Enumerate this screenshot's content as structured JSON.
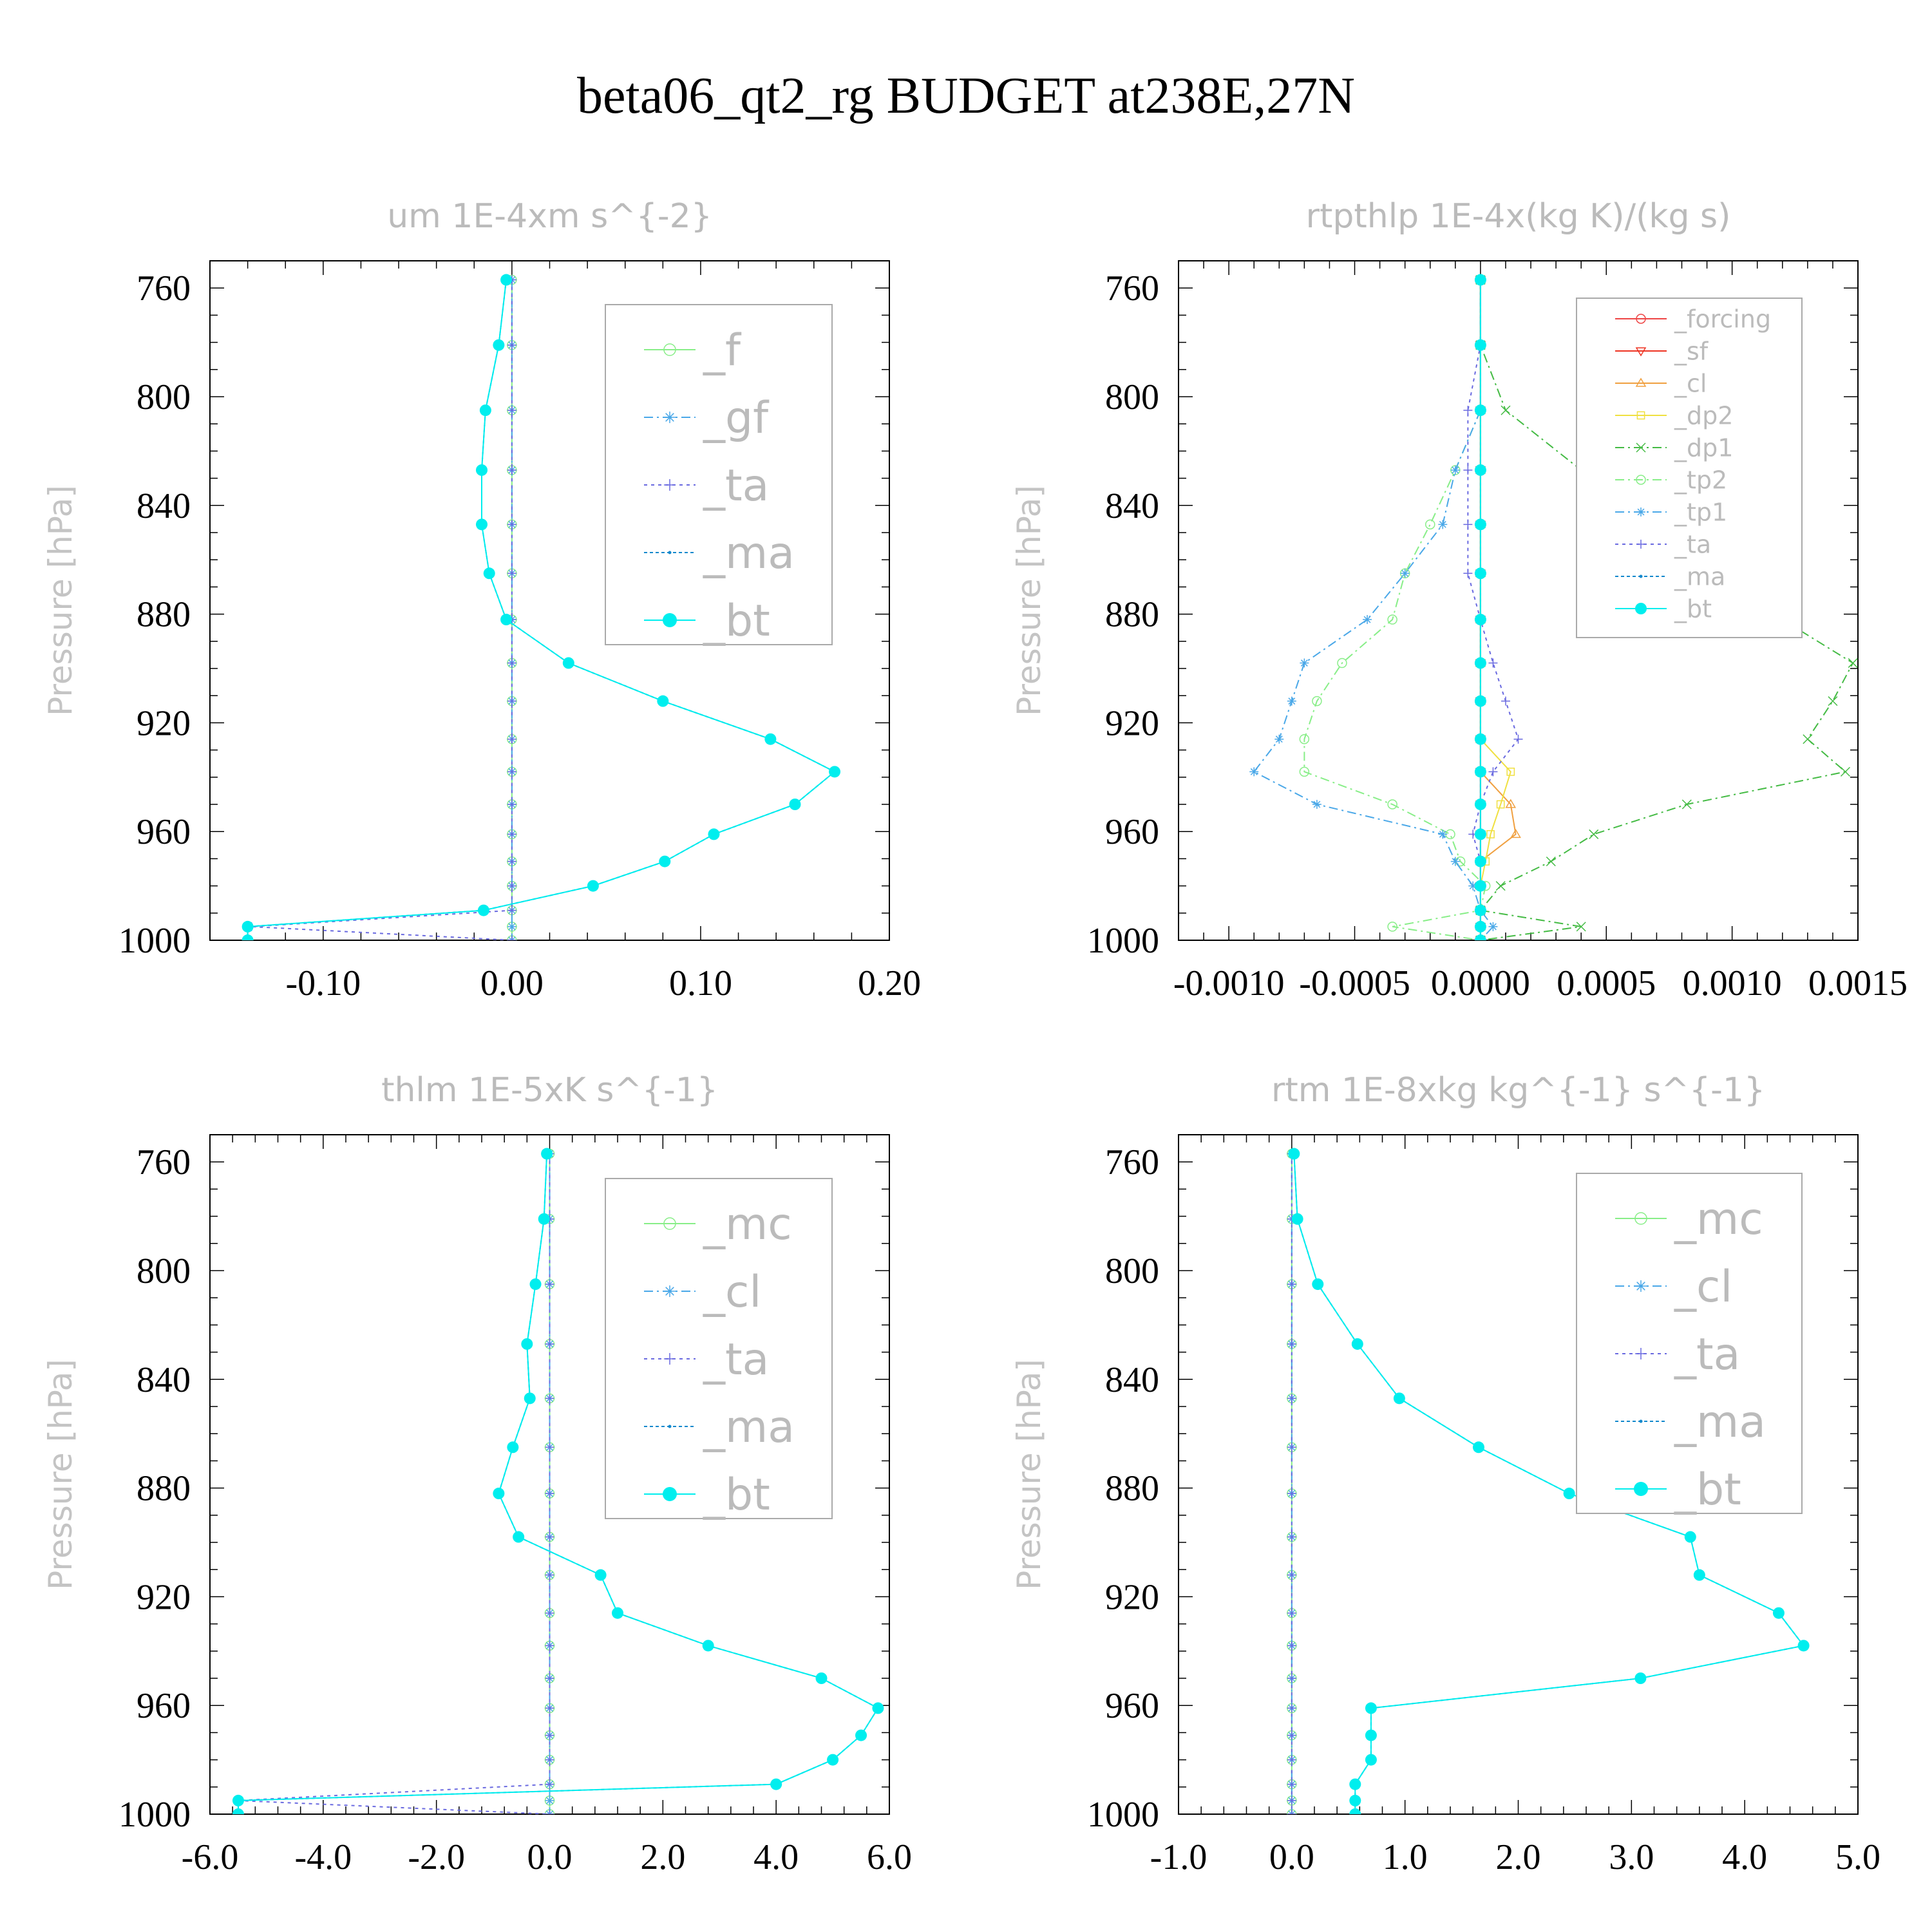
{
  "title": "beta06_qt2_rg  BUDGET at238E,27N",
  "y_axis": {
    "label": "Pressure [hPa]",
    "range": [
      1000,
      750
    ],
    "ticks": [
      760,
      800,
      840,
      880,
      920,
      960,
      1000
    ],
    "levels": [
      757,
      781,
      805,
      827,
      847,
      865,
      882,
      898,
      912,
      926,
      938,
      950,
      961,
      971,
      980,
      989,
      995,
      1000
    ]
  },
  "chart_data": [
    {
      "type": "line",
      "title": "um  1E-4xm s^{-2}",
      "ylabel": "Pressure [hPa]",
      "xlim": [
        -0.16,
        0.2
      ],
      "xticks": [
        -0.1,
        0.0,
        0.1,
        0.2
      ],
      "xtick_labels": [
        "-0.10",
        "0.00",
        "0.10",
        "0.20"
      ],
      "legend": "top-right",
      "series": [
        {
          "name": "_f",
          "color": "#88ee88",
          "marker": "circle-open",
          "dash": "0",
          "values": [
            0,
            0,
            0,
            0,
            0,
            0,
            0,
            0,
            0,
            0,
            0,
            0,
            0,
            0,
            0,
            0,
            0,
            0
          ]
        },
        {
          "name": "_gf",
          "color": "#4aa8e8",
          "marker": "star",
          "dash": "14 6 3 6",
          "values": [
            0,
            0,
            0,
            0,
            0,
            0,
            0,
            0,
            0,
            0,
            0,
            0,
            0,
            0,
            0,
            0,
            0,
            0
          ]
        },
        {
          "name": "_ta",
          "color": "#6a6ae0",
          "marker": "plus",
          "dash": "5 6",
          "values": [
            0,
            0,
            0,
            0,
            0,
            0,
            0,
            0,
            0,
            0,
            0,
            0,
            0,
            0,
            0,
            0,
            -0.138,
            0
          ]
        },
        {
          "name": "_ma",
          "color": "#1188cc",
          "marker": "dot",
          "dash": "5 4",
          "values": [
            -0.003,
            -0.007,
            -0.014,
            -0.016,
            -0.016,
            -0.012,
            -0.003,
            0.03,
            0.08,
            0.137,
            0.171,
            0.15,
            0.107,
            0.081,
            0.043,
            -0.015,
            -0.14,
            -0.14
          ]
        },
        {
          "name": "_bt",
          "color": "#00eeee",
          "marker": "filled",
          "dash": "0",
          "values": [
            -0.003,
            -0.007,
            -0.014,
            -0.016,
            -0.016,
            -0.012,
            -0.003,
            0.03,
            0.08,
            0.137,
            0.171,
            0.15,
            0.107,
            0.081,
            0.043,
            -0.015,
            -0.14,
            -0.14
          ]
        }
      ]
    },
    {
      "type": "line",
      "title": "rtpthlp  1E-4x(kg K)/(kg s)",
      "ylabel": "Pressure [hPa]",
      "xlim": [
        -0.0012,
        0.0015
      ],
      "xticks": [
        -0.001,
        -0.0005,
        0.0,
        0.0005,
        0.001,
        0.0015
      ],
      "xtick_labels": [
        "-0.0010",
        "-0.0005",
        "0.0000",
        "0.0005",
        "0.0010",
        "0.0015"
      ],
      "legend": "top-right",
      "series": [
        {
          "name": "_forcing",
          "color": "#ee4444",
          "marker": "circle-open",
          "dash": "0",
          "values": [
            0,
            0,
            0,
            0,
            0,
            0,
            0,
            0,
            0,
            0,
            0,
            0,
            0,
            0,
            0,
            0,
            0,
            0
          ]
        },
        {
          "name": "_sf",
          "color": "#ee3322",
          "marker": "tri-down",
          "dash": "0",
          "values": [
            0,
            0,
            0,
            0,
            0,
            0,
            0,
            0,
            0,
            0,
            0,
            0,
            0,
            0,
            0,
            0,
            0,
            0
          ]
        },
        {
          "name": "_cl",
          "color": "#f0a040",
          "marker": "tri-up",
          "dash": "0",
          "values": [
            0,
            0,
            0,
            0,
            0,
            0,
            0,
            0,
            0,
            0,
            0,
            0.00012,
            0.00014,
            0,
            0,
            0,
            0,
            0
          ]
        },
        {
          "name": "_dp2",
          "color": "#f0e040",
          "marker": "square",
          "dash": "0",
          "values": [
            0,
            0,
            0,
            0,
            0,
            0,
            0,
            0,
            0,
            0,
            0.00012,
            8e-05,
            4e-05,
            2e-05,
            0,
            0,
            0,
            0
          ]
        },
        {
          "name": "_dp1",
          "color": "#44bb44",
          "marker": "x",
          "dash": "14 6 3 6",
          "values": [
            0,
            0,
            0.0001,
            0.0004,
            0.00065,
            0.00095,
            0.0012,
            0.00148,
            0.0014,
            0.0013,
            0.00145,
            0.00082,
            0.00045,
            0.00028,
            8e-05,
            0,
            0.0004,
            0
          ]
        },
        {
          "name": "_tp2",
          "color": "#88ee88",
          "marker": "circle-open",
          "dash": "14 6 3 6",
          "values": [
            0,
            0,
            0,
            -0.0001,
            -0.0002,
            -0.0003,
            -0.00035,
            -0.00055,
            -0.00065,
            -0.0007,
            -0.0007,
            -0.00035,
            -0.00012,
            -8e-05,
            2e-05,
            0,
            -0.00035,
            0
          ]
        },
        {
          "name": "_tp1",
          "color": "#4aa8e8",
          "marker": "star",
          "dash": "14 6 3 6",
          "values": [
            0,
            0,
            0,
            -0.0001,
            -0.00015,
            -0.0003,
            -0.00045,
            -0.0007,
            -0.00075,
            -0.0008,
            -0.0009,
            -0.00065,
            -0.00015,
            -0.0001,
            -3e-05,
            0,
            5e-05,
            0
          ]
        },
        {
          "name": "_ta",
          "color": "#6a6ae0",
          "marker": "plus",
          "dash": "5 6",
          "values": [
            0,
            0,
            -5e-05,
            -5e-05,
            -5e-05,
            -5e-05,
            0,
            5e-05,
            0.0001,
            0.00015,
            5e-05,
            0,
            -3e-05,
            0,
            0,
            0,
            0,
            0
          ]
        },
        {
          "name": "_ma",
          "color": "#1188cc",
          "marker": "dot",
          "dash": "5 4",
          "values": [
            0,
            0,
            0,
            0,
            0,
            0,
            0,
            0,
            0,
            0,
            0,
            0,
            0,
            0,
            0,
            0,
            0,
            0
          ]
        },
        {
          "name": "_bt",
          "color": "#00eeee",
          "marker": "filled",
          "dash": "0",
          "values": [
            0,
            0,
            0,
            0,
            0,
            0,
            0,
            0,
            0,
            0,
            0,
            0,
            0,
            0,
            0,
            0,
            0,
            0
          ]
        }
      ]
    },
    {
      "type": "line",
      "title": "thlm  1E-5xK s^{-1}",
      "ylabel": "Pressure [hPa]",
      "xlim": [
        -6.0,
        6.0
      ],
      "xticks": [
        -6.0,
        -4.0,
        -2.0,
        0.0,
        2.0,
        4.0,
        6.0
      ],
      "xtick_labels": [
        "-6.0",
        "-4.0",
        "-2.0",
        "0.0",
        "2.0",
        "4.0",
        "6.0"
      ],
      "legend": "top-right",
      "series": [
        {
          "name": "_mc",
          "color": "#88ee88",
          "marker": "circle-open",
          "dash": "0",
          "values": [
            0,
            0,
            0,
            0,
            0,
            0,
            0,
            0,
            0,
            0,
            0,
            0,
            0,
            0,
            0,
            0,
            0,
            0
          ]
        },
        {
          "name": "_cl",
          "color": "#4aa8e8",
          "marker": "star",
          "dash": "14 6 3 6",
          "values": [
            0,
            0,
            0,
            0,
            0,
            0,
            0,
            0,
            0,
            0,
            0,
            0,
            0,
            0,
            0,
            0,
            0,
            0
          ]
        },
        {
          "name": "_ta",
          "color": "#6a6ae0",
          "marker": "plus",
          "dash": "5 6",
          "values": [
            0,
            0,
            0,
            0,
            0,
            0,
            0,
            0,
            0,
            0,
            0,
            0,
            0,
            0,
            0,
            0,
            -5.5,
            0
          ]
        },
        {
          "name": "_ma",
          "color": "#1188cc",
          "marker": "dot",
          "dash": "5 4",
          "values": [
            -0.05,
            -0.1,
            -0.25,
            -0.4,
            -0.35,
            -0.65,
            -0.9,
            -0.55,
            0.9,
            1.2,
            2.8,
            4.8,
            5.8,
            5.5,
            5.0,
            4.0,
            -5.5,
            -5.5
          ]
        },
        {
          "name": "_bt",
          "color": "#00eeee",
          "marker": "filled",
          "dash": "0",
          "values": [
            -0.05,
            -0.1,
            -0.25,
            -0.4,
            -0.35,
            -0.65,
            -0.9,
            -0.55,
            0.9,
            1.2,
            2.8,
            4.8,
            5.8,
            5.5,
            5.0,
            4.0,
            -5.5,
            -5.5
          ]
        }
      ]
    },
    {
      "type": "line",
      "title": "rtm  1E-8xkg kg^{-1} s^{-1}",
      "ylabel": "Pressure [hPa]",
      "xlim": [
        -1.0,
        5.0
      ],
      "xticks": [
        -1.0,
        0.0,
        1.0,
        2.0,
        3.0,
        4.0,
        5.0
      ],
      "xtick_labels": [
        "-1.0",
        "0.0",
        "1.0",
        "2.0",
        "3.0",
        "4.0",
        "5.0"
      ],
      "legend": "top-right",
      "series": [
        {
          "name": "_mc",
          "color": "#88ee88",
          "marker": "circle-open",
          "dash": "0",
          "values": [
            0,
            0,
            0,
            0,
            0,
            0,
            0,
            0,
            0,
            0,
            0,
            0,
            0,
            0,
            0,
            0,
            0,
            0
          ]
        },
        {
          "name": "_cl",
          "color": "#4aa8e8",
          "marker": "star",
          "dash": "14 6 3 6",
          "values": [
            0,
            0,
            0,
            0,
            0,
            0,
            0,
            0,
            0,
            0,
            0,
            0,
            0,
            0,
            0,
            0,
            0,
            0
          ]
        },
        {
          "name": "_ta",
          "color": "#6a6ae0",
          "marker": "plus",
          "dash": "5 6",
          "values": [
            0,
            0,
            0,
            0,
            0,
            0,
            0,
            0,
            0,
            0,
            0,
            0,
            0,
            0,
            0,
            0,
            0,
            0
          ]
        },
        {
          "name": "_ma",
          "color": "#1188cc",
          "marker": "dot",
          "dash": "5 4",
          "values": [
            0.02,
            0.05,
            0.23,
            0.58,
            0.95,
            1.65,
            2.45,
            3.52,
            3.6,
            4.3,
            4.52,
            3.08,
            0.7,
            0.7,
            0.7,
            0.56,
            0.56,
            0.56
          ]
        },
        {
          "name": "_bt",
          "color": "#00eeee",
          "marker": "filled",
          "dash": "0",
          "values": [
            0.02,
            0.05,
            0.23,
            0.58,
            0.95,
            1.65,
            2.45,
            3.52,
            3.6,
            4.3,
            4.52,
            3.08,
            0.7,
            0.7,
            0.7,
            0.56,
            0.56,
            0.56
          ]
        }
      ]
    }
  ]
}
